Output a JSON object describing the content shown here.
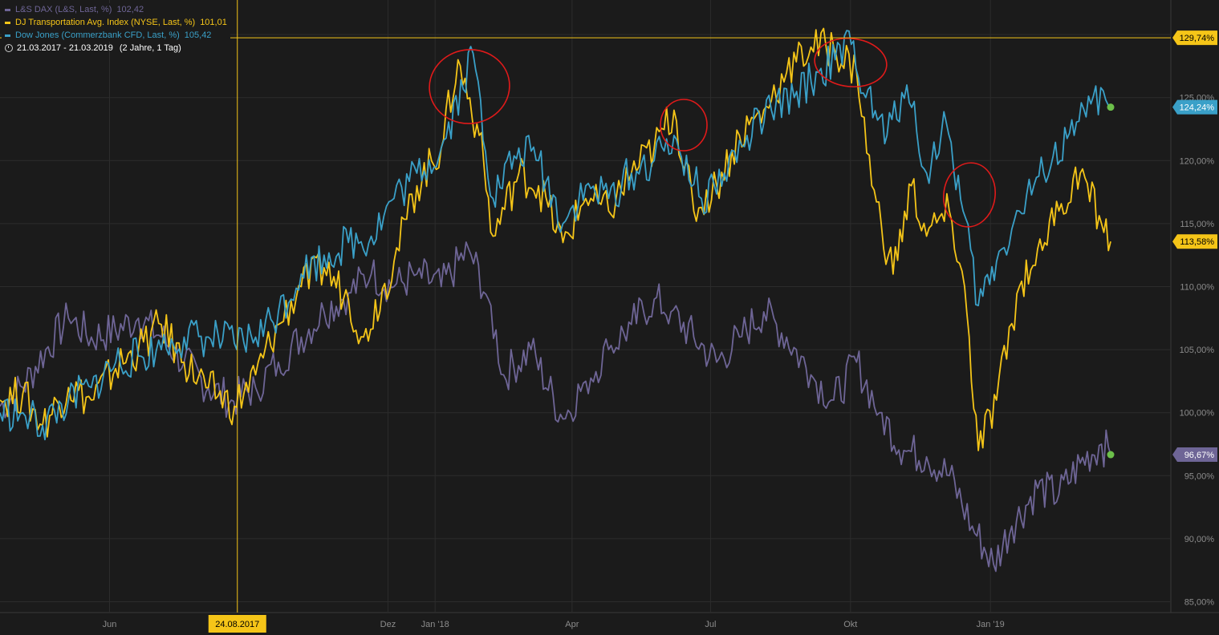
{
  "legend": [
    {
      "label": "L&S DAX (L&S, Last, %)",
      "value": "102,42",
      "color": "#6e6596"
    },
    {
      "label": "DJ Transportation Avg. Index (NYSE, Last, %)",
      "value": "101,01",
      "color": "#f5c518"
    },
    {
      "label": "Dow Jones (Commerzbank CFD, Last, %)",
      "value": "105,42",
      "color": "#3aa0c8"
    }
  ],
  "range": {
    "dates": "21.03.2017 - 21.03.2019",
    "extra": "(2 Jahre, 1 Tag)"
  },
  "cursor": {
    "date_label": "24.08.2017",
    "value_label": "129,74%"
  },
  "chart_data": {
    "type": "line",
    "ylim": [
      83,
      131
    ],
    "y_ticks": [
      "85,00%",
      "90,00%",
      "95,00%",
      "100,00%",
      "105,00%",
      "110,00%",
      "115,00%",
      "120,00%",
      "125,00%",
      "130,00%"
    ],
    "x_ticks": [
      "Jun",
      "Dez",
      "Jan '18",
      "Apr",
      "Jul",
      "Okt",
      "Jan '19"
    ],
    "x_tick_dates": [
      "2017-06-01",
      "2017-12-01",
      "2018-01-01",
      "2018-04-01",
      "2018-07-01",
      "2018-10-01",
      "2019-01-01"
    ],
    "x_range": [
      "2017-03-21",
      "2019-03-21"
    ],
    "cursor_date": "2017-08-24",
    "colors": {
      "grid": "#2c2c2c",
      "axis_text": "#8c8c8c",
      "cursor": "#f5c518",
      "end_dot": "#6cc04a",
      "annotation": "#e01a1a"
    },
    "end_labels": [
      {
        "series": "Dow Jones",
        "text": "124,24%",
        "value": 124.24,
        "bg": "#3aa0c8",
        "fg": "#ffffff"
      },
      {
        "series": "DJ Transportation",
        "text": "113,58%",
        "value": 113.58,
        "bg": "#f5c518",
        "fg": "#000000"
      },
      {
        "series": "L&S DAX",
        "text": "96,67%",
        "value": 96.67,
        "bg": "#6e6596",
        "fg": "#ffffff"
      }
    ],
    "series": [
      {
        "name": "L&S DAX",
        "color": "#6e6596",
        "points": [
          [
            "2017-03-21",
            100.5
          ],
          [
            "2017-04-05",
            102
          ],
          [
            "2017-04-20",
            105
          ],
          [
            "2017-05-05",
            107.5
          ],
          [
            "2017-05-20",
            106
          ],
          [
            "2017-06-05",
            106.5
          ],
          [
            "2017-06-20",
            107.5
          ],
          [
            "2017-07-05",
            106
          ],
          [
            "2017-07-20",
            104
          ],
          [
            "2017-08-05",
            102
          ],
          [
            "2017-08-20",
            101
          ],
          [
            "2017-09-05",
            102
          ],
          [
            "2017-09-20",
            104
          ],
          [
            "2017-10-05",
            106
          ],
          [
            "2017-10-20",
            108
          ],
          [
            "2017-11-05",
            109.5
          ],
          [
            "2017-11-20",
            111
          ],
          [
            "2017-12-05",
            110
          ],
          [
            "2017-12-20",
            111
          ],
          [
            "2018-01-05",
            110
          ],
          [
            "2018-01-23",
            113
          ],
          [
            "2018-02-05",
            109
          ],
          [
            "2018-02-15",
            103
          ],
          [
            "2018-03-05",
            105
          ],
          [
            "2018-03-26",
            99.5
          ],
          [
            "2018-04-10",
            102.5
          ],
          [
            "2018-04-25",
            105
          ],
          [
            "2018-05-10",
            107
          ],
          [
            "2018-05-25",
            109
          ],
          [
            "2018-06-05",
            108
          ],
          [
            "2018-06-20",
            106
          ],
          [
            "2018-07-05",
            104
          ],
          [
            "2018-07-20",
            106
          ],
          [
            "2018-08-05",
            108
          ],
          [
            "2018-08-20",
            106
          ],
          [
            "2018-09-05",
            103
          ],
          [
            "2018-09-20",
            101
          ],
          [
            "2018-10-05",
            104
          ],
          [
            "2018-10-20",
            100
          ],
          [
            "2018-11-05",
            97
          ],
          [
            "2018-11-20",
            96.5
          ],
          [
            "2018-12-05",
            95
          ],
          [
            "2018-12-20",
            91
          ],
          [
            "2019-01-03",
            88
          ],
          [
            "2019-01-15",
            91
          ],
          [
            "2019-02-01",
            94
          ],
          [
            "2019-02-15",
            93.5
          ],
          [
            "2019-03-01",
            96
          ],
          [
            "2019-03-15",
            97.5
          ],
          [
            "2019-03-21",
            96.67
          ]
        ]
      },
      {
        "name": "DJ Transportation",
        "color": "#f5c518",
        "points": [
          [
            "2017-03-21",
            101
          ],
          [
            "2017-04-05",
            101.5
          ],
          [
            "2017-04-18",
            99
          ],
          [
            "2017-05-05",
            102
          ],
          [
            "2017-05-20",
            101
          ],
          [
            "2017-06-05",
            103.5
          ],
          [
            "2017-06-20",
            105
          ],
          [
            "2017-07-05",
            107
          ],
          [
            "2017-07-20",
            104
          ],
          [
            "2017-08-05",
            102
          ],
          [
            "2017-08-22",
            100.5
          ],
          [
            "2017-09-05",
            103
          ],
          [
            "2017-09-20",
            107
          ],
          [
            "2017-10-05",
            110
          ],
          [
            "2017-10-20",
            111.5
          ],
          [
            "2017-11-05",
            109
          ],
          [
            "2017-11-15",
            106
          ],
          [
            "2017-12-05",
            112
          ],
          [
            "2017-12-20",
            118
          ],
          [
            "2018-01-05",
            121
          ],
          [
            "2018-01-16",
            128
          ],
          [
            "2018-01-30",
            122
          ],
          [
            "2018-02-08",
            114
          ],
          [
            "2018-02-25",
            119
          ],
          [
            "2018-03-10",
            118
          ],
          [
            "2018-03-26",
            113.5
          ],
          [
            "2018-04-10",
            117
          ],
          [
            "2018-04-25",
            116
          ],
          [
            "2018-05-10",
            119
          ],
          [
            "2018-05-25",
            121
          ],
          [
            "2018-06-07",
            124
          ],
          [
            "2018-06-20",
            116
          ],
          [
            "2018-07-05",
            118
          ],
          [
            "2018-07-20",
            122
          ],
          [
            "2018-08-05",
            124
          ],
          [
            "2018-08-20",
            127
          ],
          [
            "2018-09-05",
            129
          ],
          [
            "2018-09-20",
            129
          ],
          [
            "2018-10-05",
            127
          ],
          [
            "2018-10-15",
            118
          ],
          [
            "2018-10-29",
            111
          ],
          [
            "2018-11-10",
            118
          ],
          [
            "2018-11-20",
            114
          ],
          [
            "2018-12-05",
            116
          ],
          [
            "2018-12-15",
            110
          ],
          [
            "2018-12-24",
            97
          ],
          [
            "2019-01-05",
            101
          ],
          [
            "2019-01-20",
            110
          ],
          [
            "2019-02-01",
            113
          ],
          [
            "2019-02-15",
            116
          ],
          [
            "2019-03-01",
            119
          ],
          [
            "2019-03-15",
            115
          ],
          [
            "2019-03-21",
            113.58
          ]
        ]
      },
      {
        "name": "Dow Jones",
        "color": "#3aa0c8",
        "points": [
          [
            "2017-03-21",
            100
          ],
          [
            "2017-04-05",
            100
          ],
          [
            "2017-04-18",
            99
          ],
          [
            "2017-05-05",
            101
          ],
          [
            "2017-05-20",
            102
          ],
          [
            "2017-06-05",
            104
          ],
          [
            "2017-06-20",
            104.5
          ],
          [
            "2017-07-05",
            105
          ],
          [
            "2017-07-20",
            106
          ],
          [
            "2017-08-05",
            106
          ],
          [
            "2017-08-22",
            105.5
          ],
          [
            "2017-09-05",
            106
          ],
          [
            "2017-09-20",
            108
          ],
          [
            "2017-10-05",
            111
          ],
          [
            "2017-10-20",
            112.5
          ],
          [
            "2017-11-05",
            113.5
          ],
          [
            "2017-11-20",
            114
          ],
          [
            "2017-12-05",
            117
          ],
          [
            "2017-12-20",
            119
          ],
          [
            "2018-01-05",
            121
          ],
          [
            "2018-01-26",
            128.5
          ],
          [
            "2018-02-08",
            117
          ],
          [
            "2018-02-25",
            121
          ],
          [
            "2018-03-10",
            120
          ],
          [
            "2018-03-26",
            115
          ],
          [
            "2018-04-10",
            118
          ],
          [
            "2018-04-25",
            117
          ],
          [
            "2018-05-10",
            119
          ],
          [
            "2018-05-25",
            120
          ],
          [
            "2018-06-07",
            122
          ],
          [
            "2018-06-25",
            117
          ],
          [
            "2018-07-10",
            119
          ],
          [
            "2018-07-25",
            122
          ],
          [
            "2018-08-10",
            124
          ],
          [
            "2018-08-25",
            125
          ],
          [
            "2018-09-10",
            127
          ],
          [
            "2018-09-21",
            128
          ],
          [
            "2018-10-03",
            129.5
          ],
          [
            "2018-10-11",
            125
          ],
          [
            "2018-10-25",
            122
          ],
          [
            "2018-11-07",
            126
          ],
          [
            "2018-11-20",
            119
          ],
          [
            "2018-12-03",
            123
          ],
          [
            "2018-12-14",
            116
          ],
          [
            "2018-12-24",
            108.5
          ],
          [
            "2019-01-05",
            112
          ],
          [
            "2019-01-20",
            116
          ],
          [
            "2019-02-05",
            119
          ],
          [
            "2019-02-25",
            122
          ],
          [
            "2019-03-08",
            124.5
          ],
          [
            "2019-03-21",
            124.24
          ]
        ]
      }
    ]
  }
}
